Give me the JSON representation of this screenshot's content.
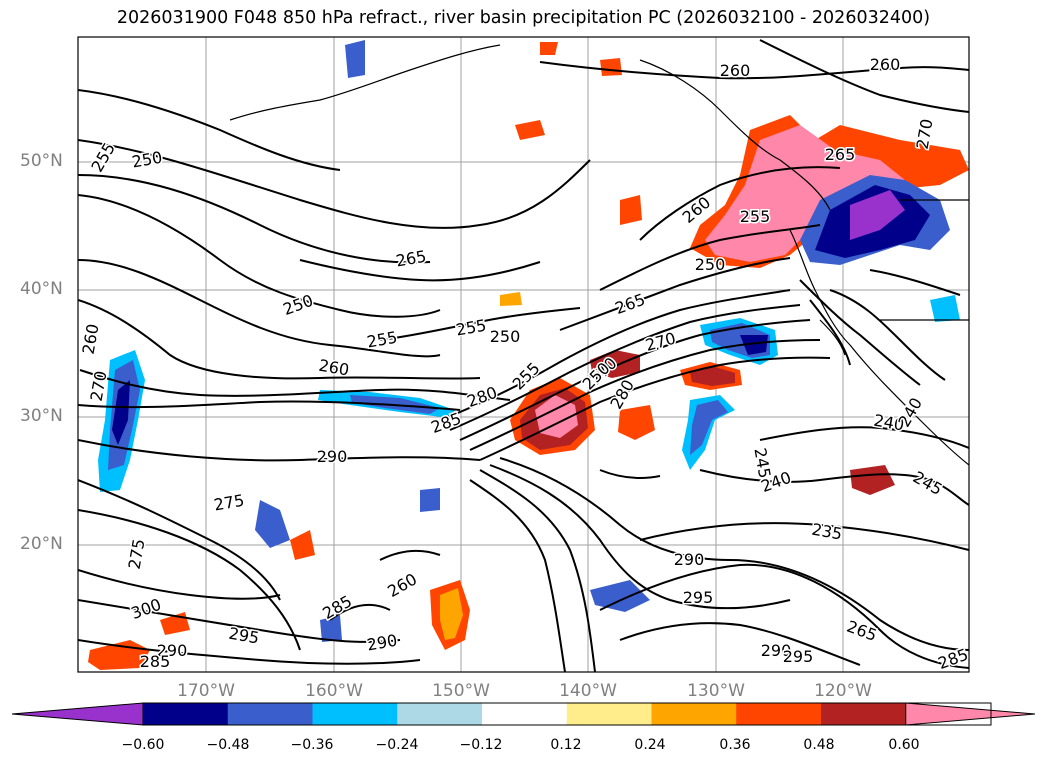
{
  "title": "2026031900 F048 850 hPa refract., river basin precipitation PC (2026032100 - 2026032400)",
  "map": {
    "lat_labels": [
      "50°N",
      "40°N",
      "30°N",
      "20°N"
    ],
    "lon_labels": [
      "170°W",
      "160°W",
      "150°W",
      "140°W",
      "130°W",
      "120°W"
    ],
    "contour_labels": [
      "250",
      "255",
      "265",
      "250",
      "255",
      "250",
      "260",
      "255",
      "260",
      "265",
      "270",
      "280",
      "285",
      "290",
      "275",
      "300",
      "295",
      "290",
      "285",
      "260",
      "285",
      "290",
      "275",
      "270",
      "260",
      "240",
      "245",
      "240",
      "235",
      "240",
      "245",
      "290",
      "295",
      "290",
      "295",
      "265",
      "285",
      "280",
      "270",
      "250",
      "260",
      "255",
      "265",
      "270",
      "255",
      "250",
      "260"
    ]
  },
  "colorbar": {
    "ticks": [
      "−0.60",
      "−0.48",
      "−0.36",
      "−0.24",
      "−0.12",
      "0.12",
      "0.24",
      "0.36",
      "0.48",
      "0.60"
    ],
    "colors": [
      "#9932cc",
      "#00008b",
      "#3a5fcd",
      "#00bfff",
      "#add8e6",
      "#ffffff",
      "#ffec8b",
      "#ffa500",
      "#ff4500",
      "#b22222",
      "#ff88aa"
    ]
  },
  "colors": {
    "contour": "#000000",
    "grid": "#a0a0a0",
    "coast": "#000000"
  }
}
